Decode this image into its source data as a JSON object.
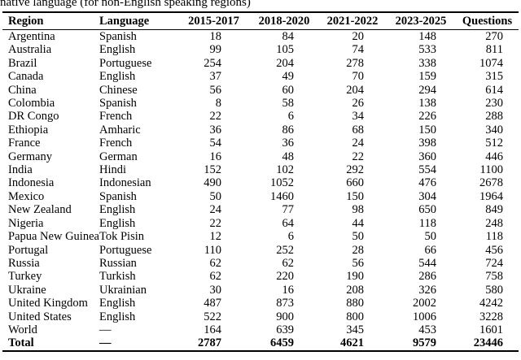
{
  "caption_fragment": "native language (for non-English speaking regions)",
  "table": {
    "columns": [
      "Region",
      "Language",
      "2015-2017",
      "2018-2020",
      "2021-2022",
      "2023-2025",
      "Questions"
    ],
    "rows": [
      [
        "Argentina",
        "Spanish",
        "18",
        "84",
        "20",
        "148",
        "270"
      ],
      [
        "Australia",
        "English",
        "99",
        "105",
        "74",
        "533",
        "811"
      ],
      [
        "Brazil",
        "Portuguese",
        "254",
        "204",
        "278",
        "338",
        "1074"
      ],
      [
        "Canada",
        "English",
        "37",
        "49",
        "70",
        "159",
        "315"
      ],
      [
        "China",
        "Chinese",
        "56",
        "60",
        "204",
        "294",
        "614"
      ],
      [
        "Colombia",
        "Spanish",
        "8",
        "58",
        "26",
        "138",
        "230"
      ],
      [
        "DR Congo",
        "French",
        "22",
        "6",
        "34",
        "226",
        "288"
      ],
      [
        "Ethiopia",
        "Amharic",
        "36",
        "86",
        "68",
        "150",
        "340"
      ],
      [
        "France",
        "French",
        "54",
        "36",
        "24",
        "398",
        "512"
      ],
      [
        "Germany",
        "German",
        "16",
        "48",
        "22",
        "360",
        "446"
      ],
      [
        "India",
        "Hindi",
        "152",
        "102",
        "292",
        "554",
        "1100"
      ],
      [
        "Indonesia",
        "Indonesian",
        "490",
        "1052",
        "660",
        "476",
        "2678"
      ],
      [
        "Mexico",
        "Spanish",
        "50",
        "1460",
        "150",
        "304",
        "1964"
      ],
      [
        "New Zealand",
        "English",
        "24",
        "77",
        "98",
        "650",
        "849"
      ],
      [
        "Nigeria",
        "English",
        "22",
        "64",
        "44",
        "118",
        "248"
      ],
      [
        "Papua New Guinea",
        "Tok Pisin",
        "12",
        "6",
        "50",
        "50",
        "118"
      ],
      [
        "Portugal",
        "Portuguese",
        "110",
        "252",
        "28",
        "66",
        "456"
      ],
      [
        "Russia",
        "Russian",
        "62",
        "62",
        "56",
        "544",
        "724"
      ],
      [
        "Turkey",
        "Turkish",
        "62",
        "220",
        "190",
        "286",
        "758"
      ],
      [
        "Ukraine",
        "Ukrainian",
        "30",
        "16",
        "208",
        "326",
        "580"
      ],
      [
        "United Kingdom",
        "English",
        "487",
        "873",
        "880",
        "2002",
        "4242"
      ],
      [
        "United States",
        "English",
        "522",
        "900",
        "800",
        "1006",
        "3228"
      ],
      [
        "World",
        "—",
        "164",
        "639",
        "345",
        "453",
        "1601"
      ]
    ],
    "total_row": [
      "Total",
      "—",
      "2787",
      "6459",
      "4621",
      "9579",
      "23446"
    ]
  }
}
